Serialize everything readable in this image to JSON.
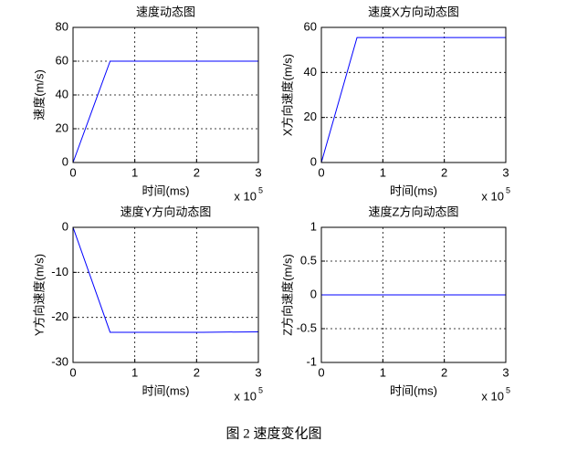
{
  "chart_data": [
    {
      "type": "line",
      "title": "速度动态图",
      "xlabel": "时间(ms)",
      "ylabel": "速度(m/s)",
      "x": [
        0,
        0.6,
        3
      ],
      "values": [
        0,
        60,
        60
      ],
      "color": "#0000ff",
      "xlim": [
        0,
        3
      ],
      "xticks": [
        0,
        1,
        2,
        3
      ],
      "x_multiplier": "x 10",
      "x_exponent": "5",
      "ylim": [
        0,
        80
      ],
      "yticks": [
        0,
        20,
        40,
        60,
        80
      ],
      "grid": true
    },
    {
      "type": "line",
      "title": "速度X方向动态图",
      "xlabel": "时间(ms)",
      "ylabel": "X方向速度(m/s)",
      "x": [
        0,
        0.58,
        3
      ],
      "values": [
        0,
        55.5,
        55.5
      ],
      "color": "#0000ff",
      "xlim": [
        0,
        3
      ],
      "xticks": [
        0,
        1,
        2,
        3
      ],
      "x_multiplier": "x 10",
      "x_exponent": "5",
      "ylim": [
        0,
        60
      ],
      "yticks": [
        0,
        20,
        40,
        60
      ],
      "grid": true
    },
    {
      "type": "line",
      "title": "速度Y方向动态图",
      "xlabel": "时间(ms)",
      "ylabel": "Y方向速度(m/s)",
      "x": [
        0,
        0.6,
        2.1,
        3
      ],
      "values": [
        0,
        -23.3,
        -23.3,
        -23.2
      ],
      "color": "#0000ff",
      "xlim": [
        0,
        3
      ],
      "xticks": [
        0,
        1,
        2,
        3
      ],
      "x_multiplier": "x 10",
      "x_exponent": "5",
      "ylim": [
        -30,
        0
      ],
      "yticks": [
        -30,
        -20,
        -10,
        0
      ],
      "grid": true
    },
    {
      "type": "line",
      "title": "速度Z方向动态图",
      "xlabel": "时间(ms)",
      "ylabel": "Z方向速度(m/s)",
      "x": [
        0,
        3
      ],
      "values": [
        0,
        0
      ],
      "color": "#0000ff",
      "xlim": [
        0,
        3
      ],
      "xticks": [
        0,
        1,
        2,
        3
      ],
      "x_multiplier": "x 10",
      "x_exponent": "5",
      "ylim": [
        -1,
        1
      ],
      "yticks": [
        -1,
        -0.5,
        0,
        0.5,
        1
      ],
      "grid": true
    }
  ],
  "caption": "图 2 速度变化图"
}
